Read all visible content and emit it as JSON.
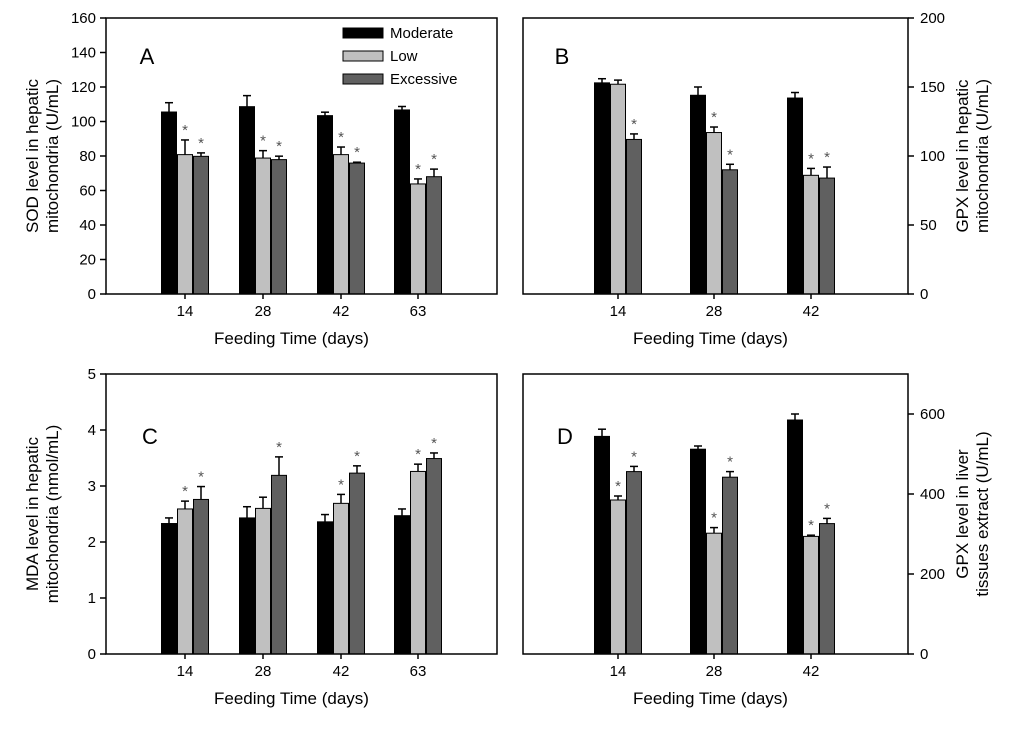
{
  "chart_data": [
    {
      "type": "bar",
      "panel_label": "A",
      "categories": [
        "14",
        "28",
        "42",
        "63"
      ],
      "xlabel": "Feeding Time (days)",
      "ylabel": [
        "SOD level in hepatic",
        "mitochondria (U/mL)"
      ],
      "ylim": [
        0,
        160
      ],
      "yticks": [
        0,
        20,
        40,
        60,
        80,
        100,
        120,
        140,
        160
      ],
      "axis_side": "left",
      "legend": {
        "placement": "top-right",
        "entries": [
          "Moderate",
          "Low",
          "Excessive"
        ]
      },
      "series": [
        {
          "name": "Moderate",
          "values": [
            105.5,
            108.6,
            103.4,
            106.7
          ],
          "errors": [
            5.4,
            6.4,
            2,
            2
          ],
          "sig": [
            false,
            false,
            false,
            false
          ]
        },
        {
          "name": "Low",
          "values": [
            80.8,
            78.8,
            80.8,
            63.8
          ],
          "errors": [
            8.5,
            4.3,
            4.4,
            2.9
          ],
          "sig": [
            true,
            true,
            true,
            true
          ]
        },
        {
          "name": "Excessive",
          "values": [
            79.8,
            77.9,
            75.9,
            68
          ],
          "errors": [
            2,
            2,
            0.5,
            4.4
          ],
          "sig": [
            true,
            true,
            true,
            true
          ]
        }
      ]
    },
    {
      "type": "bar",
      "panel_label": "B",
      "categories": [
        "14",
        "28",
        "42"
      ],
      "xlabel": "Feeding Time (days)",
      "ylabel": [
        "GPX level in hepatic",
        "mitochondria (U/mL)"
      ],
      "ylim": [
        0,
        200
      ],
      "yticks": [
        0,
        50,
        100,
        150,
        200
      ],
      "axis_side": "right",
      "series": [
        {
          "name": "Moderate",
          "values": [
            153,
            144,
            142
          ],
          "errors": [
            3,
            6,
            4
          ],
          "sig": [
            false,
            false,
            false
          ]
        },
        {
          "name": "Low",
          "values": [
            152,
            117,
            86
          ],
          "errors": [
            3,
            4,
            5
          ],
          "sig": [
            false,
            true,
            true
          ]
        },
        {
          "name": "Excessive",
          "values": [
            112,
            90,
            84
          ],
          "errors": [
            4,
            4,
            8
          ],
          "sig": [
            true,
            true,
            true
          ]
        }
      ]
    },
    {
      "type": "bar",
      "panel_label": "C",
      "categories": [
        "14",
        "28",
        "42",
        "63"
      ],
      "xlabel": "Feeding Time (days)",
      "ylabel": [
        "MDA level in hepatic",
        "mitochondria (nmol/mL)"
      ],
      "ylim": [
        0,
        5
      ],
      "yticks": [
        0,
        1,
        2,
        3,
        4,
        5
      ],
      "axis_side": "left",
      "series": [
        {
          "name": "Moderate",
          "values": [
            2.33,
            2.43,
            2.36,
            2.47
          ],
          "errors": [
            0.1,
            0.2,
            0.13,
            0.12
          ],
          "sig": [
            false,
            false,
            false,
            false
          ]
        },
        {
          "name": "Low",
          "values": [
            2.59,
            2.6,
            2.69,
            3.26
          ],
          "errors": [
            0.14,
            0.2,
            0.16,
            0.13
          ],
          "sig": [
            true,
            false,
            true,
            true
          ]
        },
        {
          "name": "Excessive",
          "values": [
            2.76,
            3.19,
            3.23,
            3.49
          ],
          "errors": [
            0.23,
            0.33,
            0.13,
            0.1
          ],
          "sig": [
            true,
            true,
            true,
            true
          ]
        }
      ]
    },
    {
      "type": "bar",
      "panel_label": "D",
      "categories": [
        "14",
        "28",
        "42"
      ],
      "xlabel": "Feeding Time (days)",
      "ylabel": [
        "GPX level in liver",
        "tissues extract (U/mL)"
      ],
      "ylim": [
        0,
        700
      ],
      "yticks": [
        0,
        200,
        400,
        600
      ],
      "axis_side": "right",
      "series": [
        {
          "name": "Moderate",
          "values": [
            544,
            512,
            585
          ],
          "errors": [
            18,
            8,
            15
          ],
          "sig": [
            false,
            false,
            false
          ]
        },
        {
          "name": "Low",
          "values": [
            385,
            302,
            294
          ],
          "errors": [
            10,
            14,
            3
          ],
          "sig": [
            true,
            true,
            true
          ]
        },
        {
          "name": "Excessive",
          "values": [
            456,
            442,
            326
          ],
          "errors": [
            13,
            14,
            13
          ],
          "sig": [
            true,
            true,
            true
          ]
        }
      ]
    }
  ],
  "significance_marker": "*",
  "colors": {
    "Moderate": "#000000",
    "Low": "#c0c0c0",
    "Excessive": "#606060",
    "sig": "#555555"
  }
}
